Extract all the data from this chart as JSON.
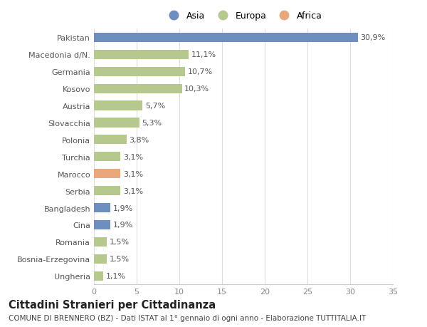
{
  "categories": [
    "Pakistan",
    "Macedonia d/N.",
    "Germania",
    "Kosovo",
    "Austria",
    "Slovacchia",
    "Polonia",
    "Turchia",
    "Marocco",
    "Serbia",
    "Bangladesh",
    "Cina",
    "Romania",
    "Bosnia-Erzegovina",
    "Ungheria"
  ],
  "values": [
    30.9,
    11.1,
    10.7,
    10.3,
    5.7,
    5.3,
    3.8,
    3.1,
    3.1,
    3.1,
    1.9,
    1.9,
    1.5,
    1.5,
    1.1
  ],
  "labels": [
    "30,9%",
    "11,1%",
    "10,7%",
    "10,3%",
    "5,7%",
    "5,3%",
    "3,8%",
    "3,1%",
    "3,1%",
    "3,1%",
    "1,9%",
    "1,9%",
    "1,5%",
    "1,5%",
    "1,1%"
  ],
  "continents": [
    "Asia",
    "Europa",
    "Europa",
    "Europa",
    "Europa",
    "Europa",
    "Europa",
    "Europa",
    "Africa",
    "Europa",
    "Asia",
    "Asia",
    "Europa",
    "Europa",
    "Europa"
  ],
  "colors": {
    "Asia": "#6d8ebf",
    "Europa": "#b5c98e",
    "Africa": "#e8a87c"
  },
  "xlim": [
    0,
    35
  ],
  "xticks": [
    0,
    5,
    10,
    15,
    20,
    25,
    30,
    35
  ],
  "title": "Cittadini Stranieri per Cittadinanza",
  "subtitle": "COMUNE DI BRENNERO (BZ) - Dati ISTAT al 1° gennaio di ogni anno - Elaborazione TUTTITALIA.IT",
  "background_color": "#ffffff",
  "bar_height": 0.55,
  "label_fontsize": 8,
  "tick_fontsize": 8,
  "title_fontsize": 10.5,
  "subtitle_fontsize": 7.5
}
